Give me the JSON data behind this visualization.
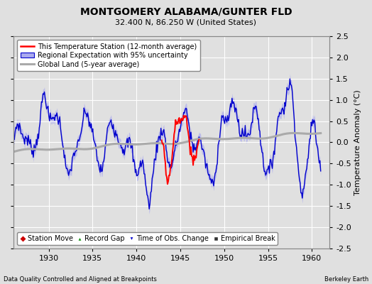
{
  "title": "MONTGOMERY ALABAMA/GUNTER FLD",
  "subtitle": "32.400 N, 86.250 W (United States)",
  "ylabel": "Temperature Anomaly (°C)",
  "xlabel_left": "Data Quality Controlled and Aligned at Breakpoints",
  "xlabel_right": "Berkeley Earth",
  "xmin": 1926.0,
  "xmax": 1962.0,
  "ymin": -2.5,
  "ymax": 2.5,
  "xticks": [
    1930,
    1935,
    1940,
    1945,
    1950,
    1955,
    1960
  ],
  "yticks": [
    -2.5,
    -2.0,
    -1.5,
    -1.0,
    -0.5,
    0.0,
    0.5,
    1.0,
    1.5,
    2.0,
    2.5
  ],
  "bg_color": "#e0e0e0",
  "grid_color": "#ffffff",
  "regional_color": "#0000cc",
  "regional_fill": "#aaaaee",
  "station_color": "#ff0000",
  "global_color": "#aaaaaa",
  "legend1_label": "This Temperature Station (12-month average)",
  "legend2_label": "Regional Expectation with 95% uncertainty",
  "legend3_label": "Global Land (5-year average)",
  "bottom_legend": [
    "Station Move",
    "Record Gap",
    "Time of Obs. Change",
    "Empirical Break"
  ],
  "title_fontsize": 10,
  "subtitle_fontsize": 8,
  "tick_fontsize": 8,
  "legend_fontsize": 7,
  "ylabel_fontsize": 8
}
